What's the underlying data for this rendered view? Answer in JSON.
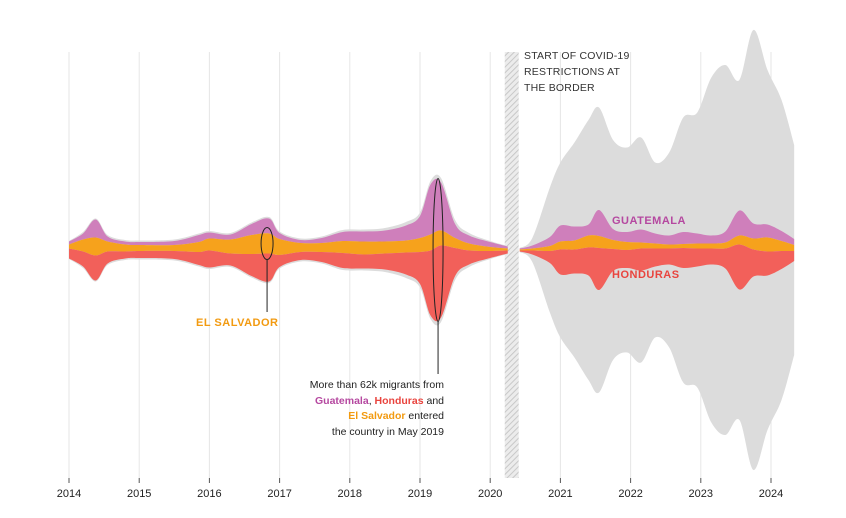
{
  "colors": {
    "guatemala": "#cf7fbb",
    "guatemala_label": "#b548a0",
    "honduras": "#f2605a",
    "honduras_label": "#e9443e",
    "el_salvador": "#f6a21c",
    "el_salvador_label": "#f29a10",
    "total": "#dcdcdc",
    "grid": "#e6e6e6",
    "covid_band": "#d3d3d3"
  },
  "covid_note": {
    "line1": "START OF COVID-19",
    "line2": "RESTRICTIONS AT",
    "line3": "THE BORDER"
  },
  "may_2019_note": {
    "line1": "More than 62k migrants from",
    "guatemala": "Guatemala",
    "sep1": ", ",
    "honduras": "Honduras",
    "and": " and",
    "el_salvador": "El Salvador",
    "entered": " entered",
    "line4": "the country in May 2019"
  },
  "chart_data": {
    "type": "area",
    "x_ticks": [
      "2014",
      "2015",
      "2016",
      "2017",
      "2018",
      "2019",
      "2020",
      "2021",
      "2022",
      "2023",
      "2024"
    ],
    "x_range": [
      2014.0,
      2024.33
    ],
    "gap": [
      2020.25,
      2020.42
    ],
    "grid": true,
    "series": [
      {
        "name": "GUATEMALA",
        "color": "#cf7fbb",
        "points": [
          [
            2014.0,
            3
          ],
          [
            2014.2,
            6
          ],
          [
            2014.38,
            18
          ],
          [
            2014.55,
            5
          ],
          [
            2014.8,
            3
          ],
          [
            2015.0,
            3
          ],
          [
            2015.5,
            4
          ],
          [
            2015.85,
            7
          ],
          [
            2016.0,
            6
          ],
          [
            2016.3,
            5
          ],
          [
            2016.6,
            11
          ],
          [
            2016.85,
            15
          ],
          [
            2017.0,
            6
          ],
          [
            2017.3,
            3
          ],
          [
            2017.6,
            5
          ],
          [
            2017.9,
            9
          ],
          [
            2018.2,
            10
          ],
          [
            2018.5,
            11
          ],
          [
            2018.8,
            15
          ],
          [
            2019.0,
            22
          ],
          [
            2019.15,
            50
          ],
          [
            2019.3,
            48
          ],
          [
            2019.5,
            14
          ],
          [
            2019.7,
            8
          ],
          [
            2020.0,
            5
          ],
          [
            2020.25,
            2
          ],
          [
            2020.42,
            1
          ],
          [
            2020.6,
            3
          ],
          [
            2020.85,
            9
          ],
          [
            2021.0,
            16
          ],
          [
            2021.2,
            14
          ],
          [
            2021.4,
            11
          ],
          [
            2021.55,
            26
          ],
          [
            2021.75,
            11
          ],
          [
            2021.95,
            10
          ],
          [
            2022.15,
            13
          ],
          [
            2022.35,
            10
          ],
          [
            2022.55,
            9
          ],
          [
            2022.75,
            12
          ],
          [
            2022.95,
            10
          ],
          [
            2023.15,
            8
          ],
          [
            2023.35,
            11
          ],
          [
            2023.55,
            25
          ],
          [
            2023.75,
            15
          ],
          [
            2023.95,
            13
          ],
          [
            2024.15,
            10
          ],
          [
            2024.33,
            6
          ]
        ]
      },
      {
        "name": "HONDURAS",
        "color": "#f2605a",
        "points": [
          [
            2014.0,
            10
          ],
          [
            2014.2,
            15
          ],
          [
            2014.38,
            25
          ],
          [
            2014.55,
            12
          ],
          [
            2014.8,
            7
          ],
          [
            2015.0,
            7
          ],
          [
            2015.5,
            8
          ],
          [
            2015.85,
            13
          ],
          [
            2016.0,
            17
          ],
          [
            2016.3,
            12
          ],
          [
            2016.6,
            22
          ],
          [
            2016.85,
            28
          ],
          [
            2017.0,
            12
          ],
          [
            2017.3,
            8
          ],
          [
            2017.6,
            10
          ],
          [
            2017.9,
            15
          ],
          [
            2018.2,
            14
          ],
          [
            2018.5,
            16
          ],
          [
            2018.8,
            22
          ],
          [
            2019.0,
            32
          ],
          [
            2019.15,
            65
          ],
          [
            2019.3,
            72
          ],
          [
            2019.5,
            28
          ],
          [
            2019.7,
            14
          ],
          [
            2020.0,
            7
          ],
          [
            2020.25,
            3
          ],
          [
            2020.42,
            1
          ],
          [
            2020.6,
            4
          ],
          [
            2020.85,
            12
          ],
          [
            2021.0,
            25
          ],
          [
            2021.2,
            24
          ],
          [
            2021.4,
            28
          ],
          [
            2021.55,
            42
          ],
          [
            2021.75,
            22
          ],
          [
            2021.95,
            18
          ],
          [
            2022.15,
            22
          ],
          [
            2022.35,
            18
          ],
          [
            2022.55,
            16
          ],
          [
            2022.75,
            20
          ],
          [
            2022.95,
            18
          ],
          [
            2023.15,
            16
          ],
          [
            2023.35,
            20
          ],
          [
            2023.55,
            45
          ],
          [
            2023.75,
            27
          ],
          [
            2023.95,
            24
          ],
          [
            2024.15,
            18
          ],
          [
            2024.33,
            10
          ]
        ]
      },
      {
        "name": "EL SALVADOR",
        "color": "#f6a21c",
        "points": [
          [
            2014.0,
            4
          ],
          [
            2014.2,
            12
          ],
          [
            2014.38,
            18
          ],
          [
            2014.55,
            10
          ],
          [
            2014.8,
            7
          ],
          [
            2015.0,
            6
          ],
          [
            2015.5,
            6
          ],
          [
            2015.85,
            10
          ],
          [
            2016.0,
            12
          ],
          [
            2016.3,
            14
          ],
          [
            2016.6,
            19
          ],
          [
            2016.85,
            20
          ],
          [
            2017.0,
            16
          ],
          [
            2017.3,
            9
          ],
          [
            2017.6,
            9
          ],
          [
            2017.9,
            12
          ],
          [
            2018.2,
            13
          ],
          [
            2018.5,
            12
          ],
          [
            2018.8,
            12
          ],
          [
            2019.0,
            14
          ],
          [
            2019.15,
            16
          ],
          [
            2019.3,
            15
          ],
          [
            2019.5,
            10
          ],
          [
            2019.7,
            7
          ],
          [
            2020.0,
            4
          ],
          [
            2020.25,
            2
          ],
          [
            2020.42,
            1
          ],
          [
            2020.6,
            2
          ],
          [
            2020.85,
            5
          ],
          [
            2021.0,
            8
          ],
          [
            2021.2,
            9
          ],
          [
            2021.4,
            12
          ],
          [
            2021.55,
            12
          ],
          [
            2021.75,
            9
          ],
          [
            2021.95,
            8
          ],
          [
            2022.15,
            6
          ],
          [
            2022.35,
            5
          ],
          [
            2022.55,
            4
          ],
          [
            2022.75,
            4
          ],
          [
            2022.95,
            5
          ],
          [
            2023.15,
            5
          ],
          [
            2023.35,
            6
          ],
          [
            2023.55,
            9
          ],
          [
            2023.75,
            11
          ],
          [
            2023.95,
            14
          ],
          [
            2024.15,
            10
          ],
          [
            2024.33,
            6
          ]
        ]
      },
      {
        "name": "",
        "color": "#dcdcdc",
        "points": [
          [
            2014.0,
            18
          ],
          [
            2014.2,
            36
          ],
          [
            2014.38,
            63
          ],
          [
            2014.55,
            30
          ],
          [
            2014.8,
            20
          ],
          [
            2015.0,
            19
          ],
          [
            2015.5,
            21
          ],
          [
            2015.85,
            33
          ],
          [
            2016.0,
            38
          ],
          [
            2016.3,
            34
          ],
          [
            2016.6,
            55
          ],
          [
            2016.85,
            66
          ],
          [
            2017.0,
            37
          ],
          [
            2017.3,
            23
          ],
          [
            2017.6,
            27
          ],
          [
            2017.9,
            40
          ],
          [
            2018.2,
            41
          ],
          [
            2018.5,
            44
          ],
          [
            2018.8,
            56
          ],
          [
            2019.0,
            75
          ],
          [
            2019.15,
            138
          ],
          [
            2019.3,
            144
          ],
          [
            2019.5,
            60
          ],
          [
            2019.7,
            34
          ],
          [
            2020.0,
            18
          ],
          [
            2020.25,
            8
          ],
          [
            2020.42,
            4
          ],
          [
            2020.6,
            24
          ],
          [
            2020.85,
            125
          ],
          [
            2021.0,
            175
          ],
          [
            2021.2,
            215
          ],
          [
            2021.4,
            260
          ],
          [
            2021.55,
            285
          ],
          [
            2021.75,
            220
          ],
          [
            2021.95,
            205
          ],
          [
            2022.15,
            225
          ],
          [
            2022.35,
            175
          ],
          [
            2022.55,
            195
          ],
          [
            2022.75,
            265
          ],
          [
            2022.95,
            275
          ],
          [
            2023.15,
            345
          ],
          [
            2023.35,
            370
          ],
          [
            2023.55,
            340
          ],
          [
            2023.75,
            440
          ],
          [
            2023.95,
            360
          ],
          [
            2024.15,
            300
          ],
          [
            2024.33,
            210
          ]
        ]
      }
    ]
  }
}
